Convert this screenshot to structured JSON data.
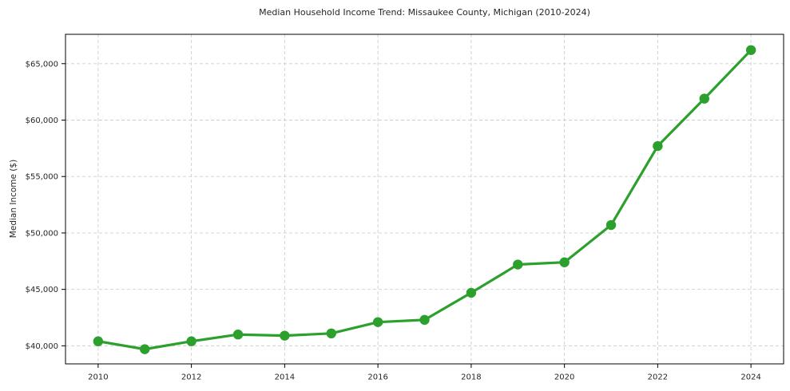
{
  "chart_data": {
    "type": "line",
    "title": "Median Household Income Trend: Missaukee County, Michigan (2010-2024)",
    "xlabel": "",
    "ylabel": "Median Income ($)",
    "x": [
      2010,
      2011,
      2012,
      2013,
      2014,
      2015,
      2016,
      2017,
      2018,
      2019,
      2020,
      2021,
      2022,
      2023,
      2024
    ],
    "values": [
      40400,
      39700,
      40400,
      41000,
      40900,
      41100,
      42100,
      42300,
      44700,
      47200,
      47400,
      50700,
      57700,
      61900,
      66200
    ],
    "series_name": "Median household income",
    "xlim": [
      2009.3,
      2024.7
    ],
    "ylim": [
      38400,
      67600
    ],
    "x_ticks": [
      2010,
      2012,
      2014,
      2016,
      2018,
      2020,
      2022,
      2024
    ],
    "x_tick_labels": [
      "2010",
      "2012",
      "2014",
      "2016",
      "2018",
      "2020",
      "2022",
      "2024"
    ],
    "y_ticks": [
      40000,
      45000,
      50000,
      55000,
      60000,
      65000
    ],
    "y_tick_labels": [
      "$40,000",
      "$45,000",
      "$50,000",
      "$55,000",
      "$60,000",
      "$65,000"
    ],
    "grid": true,
    "grid_style": "dashed",
    "legend": "none",
    "line_color": "#2ca02c",
    "marker": "circle",
    "marker_color": "#2ca02c",
    "grid_color": "#cdcdcd",
    "axis_color": "#000000",
    "text_color": "#262626",
    "background_color": "#ffffff"
  }
}
